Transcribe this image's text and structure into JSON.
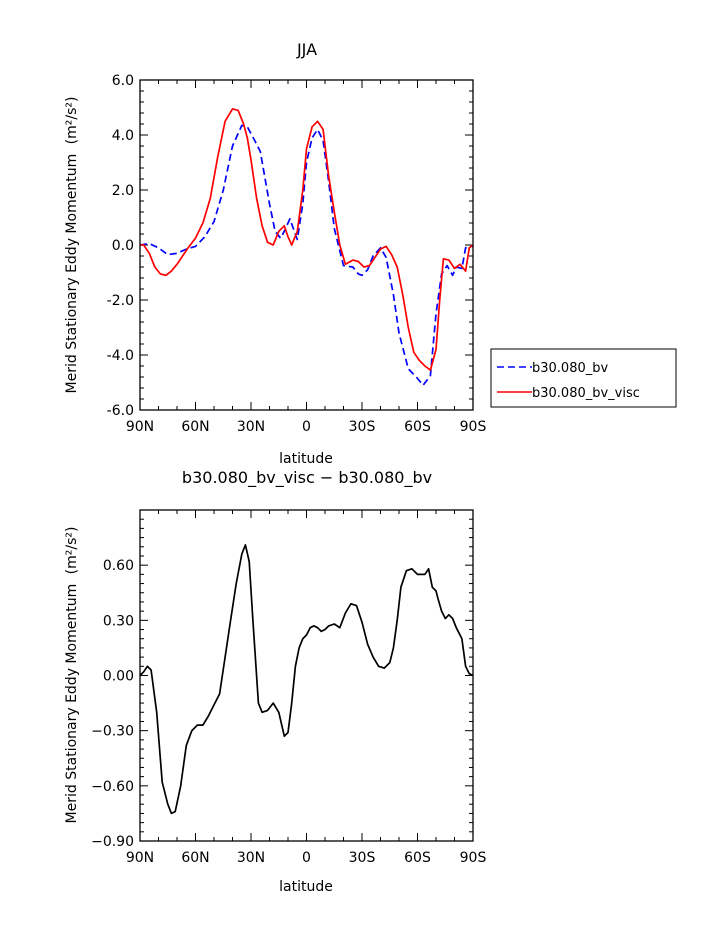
{
  "chart_data": [
    {
      "type": "line",
      "title": "JJA",
      "xlabel": "latitude",
      "ylabel": "Merid Stationary Eddy Momentum",
      "ylabel_unit": "(m²/s²)",
      "xlim": [
        90,
        -90
      ],
      "ylim": [
        -6,
        6
      ],
      "xticks": [
        90,
        60,
        30,
        0,
        -30,
        -60,
        -90
      ],
      "xtick_labels": [
        "90N",
        "60N",
        "30N",
        "0",
        "30S",
        "60S",
        "90S"
      ],
      "yticks": [
        -6,
        -4,
        -2,
        0,
        2,
        4,
        6
      ],
      "ytick_labels": [
        "-6.0",
        "-4.0",
        "-2.0",
        "0.0",
        "2.0",
        "4.0",
        "6.0"
      ],
      "legend_position": "right",
      "series": [
        {
          "name": "b30.080_bv",
          "color": "#0000ff",
          "style": "dashed",
          "x": [
            90,
            85,
            80,
            75,
            70,
            65,
            60,
            55,
            50,
            45,
            40,
            35,
            32,
            28,
            25,
            20,
            17,
            14,
            12,
            9,
            5,
            2,
            0,
            -3,
            -6,
            -9,
            -12,
            -15,
            -20,
            -25,
            -28,
            -30,
            -33,
            -36,
            -40,
            -43,
            -47,
            -50,
            -55,
            -60,
            -63,
            -67,
            -70,
            -73,
            -76,
            -79,
            -81,
            -84,
            -86,
            -88,
            -90
          ],
          "y": [
            0.0,
            0.05,
            -0.1,
            -0.35,
            -0.3,
            -0.15,
            -0.05,
            0.3,
            0.85,
            2.0,
            3.6,
            4.35,
            4.3,
            3.8,
            3.4,
            1.5,
            0.5,
            0.25,
            0.5,
            0.95,
            0.2,
            1.5,
            3.0,
            3.9,
            4.2,
            3.8,
            2.3,
            0.6,
            -0.75,
            -0.8,
            -1.05,
            -1.1,
            -0.9,
            -0.4,
            -0.1,
            -0.45,
            -1.8,
            -3.2,
            -4.5,
            -4.85,
            -5.1,
            -4.75,
            -2.5,
            -1.05,
            -0.75,
            -1.1,
            -0.8,
            -0.85,
            -0.1,
            -0.05,
            -0.05
          ]
        },
        {
          "name": "b30.080_bv_visc",
          "color": "#ff0000",
          "style": "solid",
          "x": [
            90,
            88,
            85,
            82,
            79,
            76,
            73,
            70,
            67,
            64,
            60,
            56,
            52,
            48,
            44,
            40,
            37,
            34,
            32,
            30,
            27,
            24,
            21,
            18,
            15,
            12,
            10,
            8,
            5,
            2,
            0,
            -3,
            -6,
            -9,
            -12,
            -15,
            -18,
            -21,
            -25,
            -28,
            -31,
            -34,
            -37,
            -40,
            -43,
            -46,
            -49,
            -52,
            -55,
            -58,
            -61,
            -64,
            -67,
            -70,
            -72,
            -74,
            -77,
            -80,
            -83,
            -86,
            -88,
            -90
          ],
          "y": [
            0.0,
            0.0,
            -0.3,
            -0.8,
            -1.05,
            -1.1,
            -0.95,
            -0.7,
            -0.4,
            -0.1,
            0.25,
            0.8,
            1.7,
            3.2,
            4.5,
            4.95,
            4.9,
            4.4,
            3.9,
            3.1,
            1.7,
            0.7,
            0.1,
            0.0,
            0.5,
            0.7,
            0.3,
            0.0,
            0.5,
            2.0,
            3.5,
            4.3,
            4.5,
            4.2,
            2.5,
            1.2,
            0.0,
            -0.7,
            -0.55,
            -0.6,
            -0.8,
            -0.75,
            -0.45,
            -0.15,
            -0.05,
            -0.35,
            -0.8,
            -1.8,
            -3.0,
            -3.9,
            -4.2,
            -4.4,
            -4.55,
            -3.8,
            -2.0,
            -0.5,
            -0.55,
            -0.85,
            -0.7,
            -0.95,
            -0.1,
            0.0
          ]
        }
      ]
    },
    {
      "type": "line",
      "title": "b30.080_bv_visc − b30.080_bv",
      "xlabel": "latitude",
      "ylabel": "Merid Stationary Eddy Momentum",
      "ylabel_unit": "(m²/s²)",
      "xlim": [
        90,
        -90
      ],
      "ylim": [
        -0.9,
        0.9
      ],
      "xticks": [
        90,
        60,
        30,
        0,
        -30,
        -60,
        -90
      ],
      "xtick_labels": [
        "90N",
        "60N",
        "30N",
        "0",
        "30S",
        "60S",
        "90S"
      ],
      "yticks": [
        -0.9,
        -0.6,
        -0.3,
        0.0,
        0.3,
        0.6
      ],
      "ytick_labels": [
        "−0.90",
        "−0.60",
        "−0.30",
        "0.00",
        "0.30",
        "0.60"
      ],
      "series": [
        {
          "color": "#000000",
          "style": "solid",
          "x": [
            90,
            88,
            86,
            84,
            81,
            78,
            75,
            73,
            71,
            68,
            65,
            62,
            59,
            56,
            53,
            50,
            47,
            44,
            41,
            38,
            35,
            33,
            31,
            29,
            26,
            24,
            21,
            18,
            15,
            12,
            10,
            8,
            6,
            4,
            2,
            0,
            -2,
            -4,
            -6,
            -8,
            -10,
            -12,
            -15,
            -18,
            -21,
            -24,
            -27,
            -30,
            -33,
            -36,
            -39,
            -42,
            -45,
            -47,
            -49,
            -51,
            -54,
            -57,
            -60,
            -62,
            -64,
            -66,
            -68,
            -70,
            -71,
            -73,
            -75,
            -77,
            -79,
            -81,
            -84,
            -86,
            -88,
            -90
          ],
          "y": [
            0.0,
            0.02,
            0.05,
            0.03,
            -0.2,
            -0.58,
            -0.7,
            -0.75,
            -0.74,
            -0.6,
            -0.38,
            -0.3,
            -0.27,
            -0.27,
            -0.22,
            -0.16,
            -0.1,
            0.1,
            0.3,
            0.5,
            0.66,
            0.71,
            0.62,
            0.3,
            -0.15,
            -0.2,
            -0.19,
            -0.15,
            -0.2,
            -0.33,
            -0.31,
            -0.15,
            0.05,
            0.15,
            0.2,
            0.22,
            0.26,
            0.27,
            0.26,
            0.24,
            0.25,
            0.27,
            0.28,
            0.26,
            0.34,
            0.39,
            0.38,
            0.29,
            0.17,
            0.1,
            0.05,
            0.04,
            0.07,
            0.15,
            0.3,
            0.48,
            0.57,
            0.58,
            0.55,
            0.55,
            0.55,
            0.58,
            0.48,
            0.46,
            0.42,
            0.35,
            0.31,
            0.33,
            0.31,
            0.26,
            0.2,
            0.05,
            0.01,
            0.0
          ]
        }
      ]
    }
  ]
}
